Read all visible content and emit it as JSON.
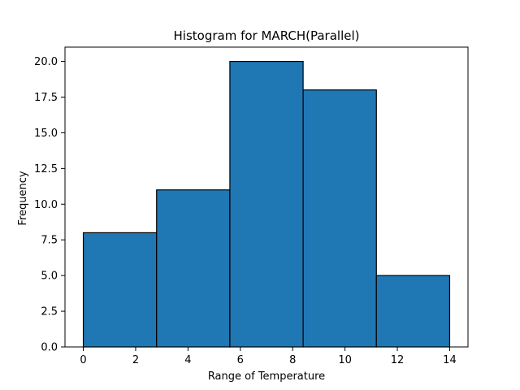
{
  "chart_data": {
    "type": "bar",
    "title": "Histogram for MARCH(Parallel)",
    "xlabel": "Range of Temperature",
    "ylabel": "Frequency",
    "bins": [
      {
        "start": 0.0,
        "end": 2.8,
        "value": 8
      },
      {
        "start": 2.8,
        "end": 5.6,
        "value": 11
      },
      {
        "start": 5.6,
        "end": 8.4,
        "value": 20
      },
      {
        "start": 8.4,
        "end": 11.2,
        "value": 18
      },
      {
        "start": 11.2,
        "end": 14.0,
        "value": 5
      }
    ],
    "xlim": [
      -0.7,
      14.7
    ],
    "ylim": [
      0,
      21
    ],
    "xticks": [
      0,
      2,
      4,
      6,
      8,
      10,
      12,
      14
    ],
    "xtick_labels": [
      "0",
      "2",
      "4",
      "6",
      "8",
      "10",
      "12",
      "14"
    ],
    "yticks": [
      0,
      2.5,
      5,
      7.5,
      10,
      12.5,
      15,
      17.5,
      20
    ],
    "ytick_labels": [
      "0.0",
      "2.5",
      "5.0",
      "7.5",
      "10.0",
      "12.5",
      "15.0",
      "17.5",
      "20.0"
    ],
    "bar_color": "#1f77b4",
    "edge_color": "#000000",
    "grid": false
  }
}
